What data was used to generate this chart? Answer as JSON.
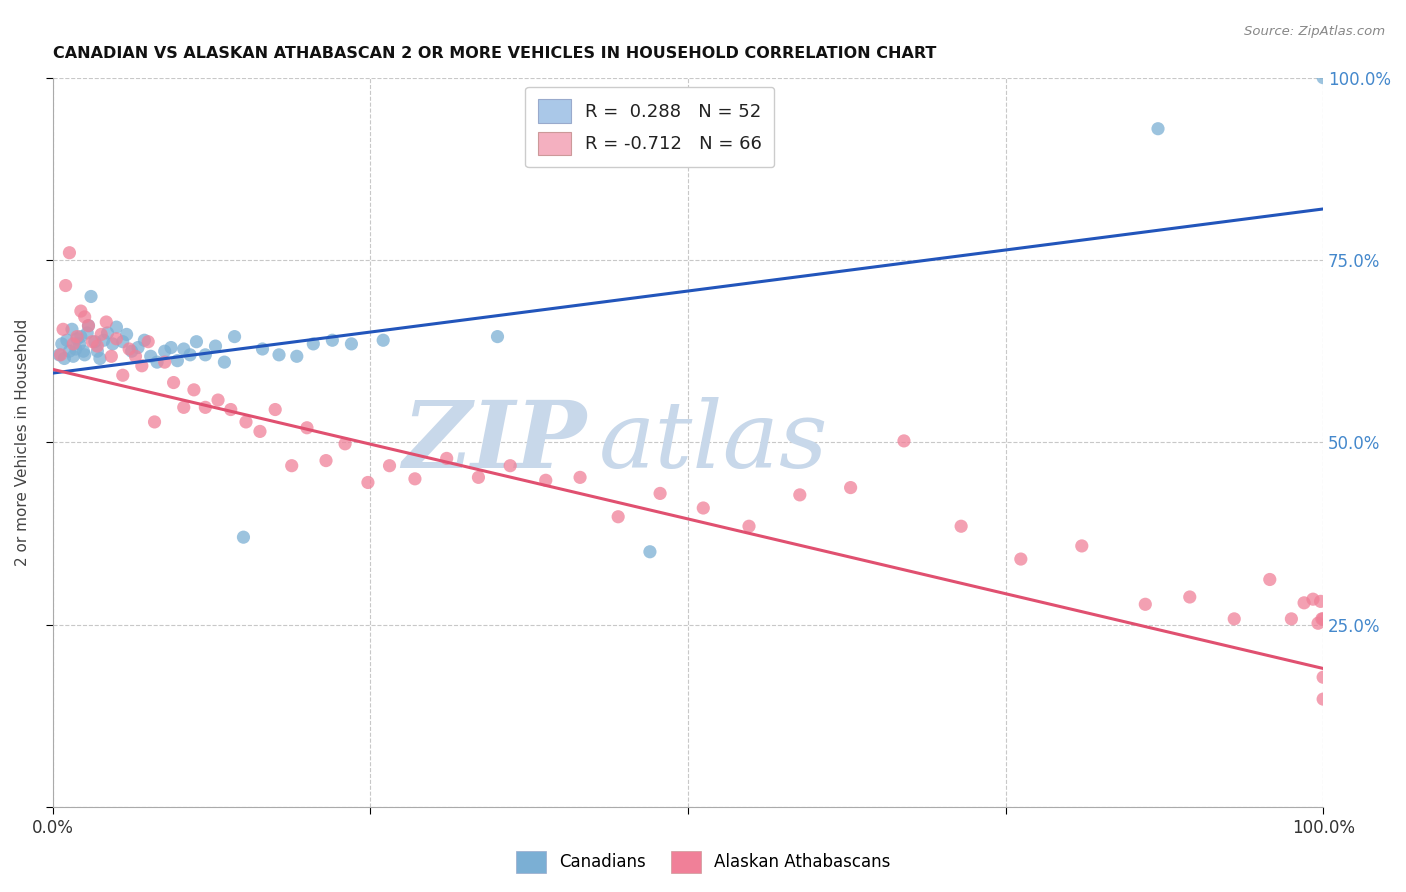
{
  "title": "CANADIAN VS ALASKAN ATHABASCAN 2 OR MORE VEHICLES IN HOUSEHOLD CORRELATION CHART",
  "source": "Source: ZipAtlas.com",
  "ylabel": "2 or more Vehicles in Household",
  "ytick_values": [
    0.0,
    0.25,
    0.5,
    0.75,
    1.0
  ],
  "ytick_labels_right": [
    "",
    "25.0%",
    "50.0%",
    "75.0%",
    "100.0%"
  ],
  "xtick_values": [
    0.0,
    0.25,
    0.5,
    0.75,
    1.0
  ],
  "xtick_labels": [
    "0.0%",
    "",
    "",
    "",
    "100.0%"
  ],
  "xlim": [
    0,
    1
  ],
  "ylim": [
    0,
    1
  ],
  "canadians_color": "#7bafd4",
  "alaskan_color": "#f08098",
  "canadians_line_color": "#2255bb",
  "alaskan_line_color": "#e05070",
  "canadians_R": 0.288,
  "alaskan_R": -0.712,
  "canadians_N": 52,
  "alaskan_N": 66,
  "watermark_zip": "ZIP",
  "watermark_atlas": "atlas",
  "watermark_color": "#c8d8ea",
  "grid_color": "#c8c8c8",
  "background_color": "#ffffff",
  "right_tick_color": "#4488cc",
  "legend_blue_face": "#aac8e8",
  "legend_pink_face": "#f4b0c0",
  "can_line_y0": 0.595,
  "can_line_y1": 0.82,
  "ala_line_y0": 0.6,
  "ala_line_y1": 0.19,
  "canadians_x": [
    0.005,
    0.007,
    0.009,
    0.011,
    0.013,
    0.015,
    0.016,
    0.018,
    0.019,
    0.021,
    0.022,
    0.024,
    0.025,
    0.027,
    0.028,
    0.03,
    0.033,
    0.035,
    0.037,
    0.04,
    0.043,
    0.047,
    0.05,
    0.055,
    0.058,
    0.062,
    0.067,
    0.072,
    0.077,
    0.082,
    0.088,
    0.093,
    0.098,
    0.103,
    0.108,
    0.113,
    0.12,
    0.128,
    0.135,
    0.143,
    0.15,
    0.165,
    0.178,
    0.192,
    0.205,
    0.22,
    0.235,
    0.26,
    0.35,
    0.47,
    0.87,
    1.0
  ],
  "canadians_y": [
    0.62,
    0.635,
    0.615,
    0.64,
    0.625,
    0.655,
    0.618,
    0.628,
    0.642,
    0.635,
    0.645,
    0.625,
    0.62,
    0.65,
    0.66,
    0.7,
    0.638,
    0.625,
    0.615,
    0.64,
    0.65,
    0.635,
    0.658,
    0.638,
    0.648,
    0.625,
    0.63,
    0.64,
    0.618,
    0.61,
    0.625,
    0.63,
    0.612,
    0.628,
    0.62,
    0.638,
    0.62,
    0.632,
    0.61,
    0.645,
    0.37,
    0.628,
    0.62,
    0.618,
    0.635,
    0.64,
    0.635,
    0.64,
    0.645,
    0.35,
    0.93,
    1.0
  ],
  "alaskan_x": [
    0.006,
    0.008,
    0.01,
    0.013,
    0.016,
    0.019,
    0.022,
    0.025,
    0.028,
    0.031,
    0.035,
    0.038,
    0.042,
    0.046,
    0.05,
    0.055,
    0.06,
    0.065,
    0.07,
    0.075,
    0.08,
    0.088,
    0.095,
    0.103,
    0.111,
    0.12,
    0.13,
    0.14,
    0.152,
    0.163,
    0.175,
    0.188,
    0.2,
    0.215,
    0.23,
    0.248,
    0.265,
    0.285,
    0.31,
    0.335,
    0.36,
    0.388,
    0.415,
    0.445,
    0.478,
    0.512,
    0.548,
    0.588,
    0.628,
    0.67,
    0.715,
    0.762,
    0.81,
    0.86,
    0.895,
    0.93,
    0.958,
    0.975,
    0.985,
    0.992,
    0.996,
    0.998,
    0.999,
    1.0,
    1.0,
    1.0
  ],
  "alaskan_y": [
    0.62,
    0.655,
    0.715,
    0.76,
    0.635,
    0.645,
    0.68,
    0.672,
    0.66,
    0.638,
    0.632,
    0.648,
    0.665,
    0.618,
    0.642,
    0.592,
    0.628,
    0.618,
    0.605,
    0.638,
    0.528,
    0.61,
    0.582,
    0.548,
    0.572,
    0.548,
    0.558,
    0.545,
    0.528,
    0.515,
    0.545,
    0.468,
    0.52,
    0.475,
    0.498,
    0.445,
    0.468,
    0.45,
    0.478,
    0.452,
    0.468,
    0.448,
    0.452,
    0.398,
    0.43,
    0.41,
    0.385,
    0.428,
    0.438,
    0.502,
    0.385,
    0.34,
    0.358,
    0.278,
    0.288,
    0.258,
    0.312,
    0.258,
    0.28,
    0.285,
    0.252,
    0.282,
    0.258,
    0.178,
    0.258,
    0.148
  ]
}
